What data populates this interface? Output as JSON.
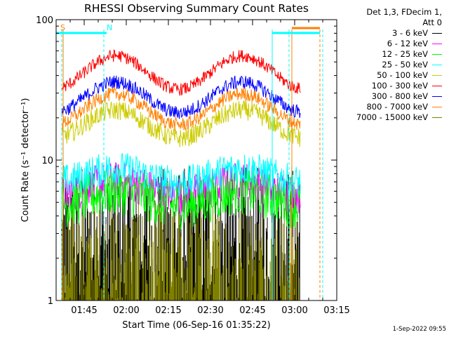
{
  "chart_data": {
    "type": "line",
    "title": "RHESSI Observing Summary Count Rates",
    "xlabel": "Start Time (06-Sep-16 01:35:22)",
    "ylabel": "Count Rate (s⁻¹ detector⁻¹)",
    "yscale": "log",
    "ylim": [
      1,
      100
    ],
    "xlim_minutes": [
      0,
      100
    ],
    "x_ticks": [
      {
        "minute": 10,
        "label": "01:45"
      },
      {
        "minute": 25,
        "label": "02:00"
      },
      {
        "minute": 40,
        "label": "02:15"
      },
      {
        "minute": 55,
        "label": "02:30"
      },
      {
        "minute": 70,
        "label": "02:45"
      },
      {
        "minute": 85,
        "label": "03:00"
      },
      {
        "minute": 100,
        "label": "03:15"
      }
    ],
    "y_ticks": [
      {
        "value": 1,
        "label": "1"
      },
      {
        "value": 10,
        "label": "10"
      },
      {
        "value": 100,
        "label": "100"
      }
    ],
    "data_range_minutes": [
      2,
      87
    ],
    "series": [
      {
        "name": "3 - 6 keV",
        "color": "#000000",
        "base": 2.6,
        "amp": 0.0,
        "noise": 0.55,
        "style": "bars"
      },
      {
        "name": "6 - 12 keV",
        "color": "#ff00ff",
        "base": 6.3,
        "amp": 0.05,
        "noise": 0.14
      },
      {
        "name": "12 - 25 keV",
        "color": "#00ff00",
        "base": 5.3,
        "amp": 0.05,
        "noise": 0.17
      },
      {
        "name": "25 - 50 keV",
        "color": "#00ffff",
        "base": 7.8,
        "amp": 0.05,
        "noise": 0.12
      },
      {
        "name": "50 - 100 keV",
        "color": "#cccc00",
        "base": 18.0,
        "amp": 0.1,
        "noise": 0.07
      },
      {
        "name": "100 - 300 keV",
        "color": "#ff0000",
        "base": 42.0,
        "amp": 0.12,
        "noise": 0.045
      },
      {
        "name": "300 - 800 keV",
        "color": "#0000ff",
        "base": 28.0,
        "amp": 0.11,
        "noise": 0.05
      },
      {
        "name": "800 - 7000 keV",
        "color": "#ff8000",
        "base": 23.0,
        "amp": 0.11,
        "noise": 0.05
      },
      {
        "name": "7000 - 15000 keV",
        "color": "#808000",
        "base": 1.6,
        "amp": 0.0,
        "noise": 0.5,
        "style": "bars"
      }
    ],
    "annotations": [
      {
        "text": "S",
        "color": "#ff8000",
        "minute": 1.5
      },
      {
        "text": "N",
        "color": "#00ffff",
        "minute": 18
      }
    ],
    "vertical_markers": [
      {
        "minute": 2,
        "color": "#00ffff",
        "dash": true
      },
      {
        "minute": 17,
        "color": "#00ffff",
        "dash": true
      },
      {
        "minute": 77,
        "color": "#00ffff",
        "dash": false
      },
      {
        "minute": 83,
        "color": "#00ffff",
        "dash": true
      },
      {
        "minute": 95,
        "color": "#00ffff",
        "dash": true
      },
      {
        "minute": 2.5,
        "color": "#ff8000",
        "dash": false
      },
      {
        "minute": 84,
        "color": "#ff8000",
        "dash": false
      },
      {
        "minute": 94,
        "color": "#ff8000",
        "dash": true
      }
    ],
    "legend_header": [
      "Det 1,3, FDecim 1,",
      "Att 0"
    ]
  },
  "footer_timestamp": "1-Sep-2022 09:55"
}
